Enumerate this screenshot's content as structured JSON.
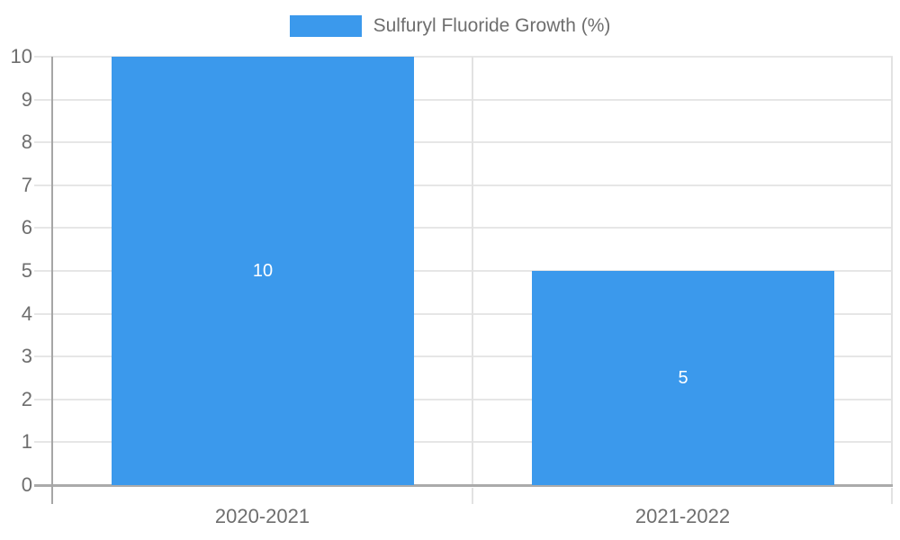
{
  "chart_data": {
    "type": "bar",
    "categories": [
      "2020-2021",
      "2021-2022"
    ],
    "series": [
      {
        "name": "Sulfuryl Fluoride Growth (%)",
        "values": [
          10,
          5
        ]
      }
    ],
    "title": "",
    "xlabel": "",
    "ylabel": "",
    "ylim": [
      0,
      10
    ],
    "y_tick_step": 1,
    "y_ticks": [
      "0",
      "1",
      "2",
      "3",
      "4",
      "5",
      "6",
      "7",
      "8",
      "9",
      "10"
    ],
    "grid": true,
    "legend_position": "top-center",
    "value_labels_shown": true
  },
  "colors": {
    "bar": "#3B99EC",
    "grid_line": "#e6e6e6",
    "boundary_line": "#e2e2e2",
    "y_axis_line": "#a6a6a6",
    "baseline": "#ababab",
    "axis_text": "#6e6e6e",
    "bar_label_text": "#ffffff",
    "background": "#ffffff"
  }
}
